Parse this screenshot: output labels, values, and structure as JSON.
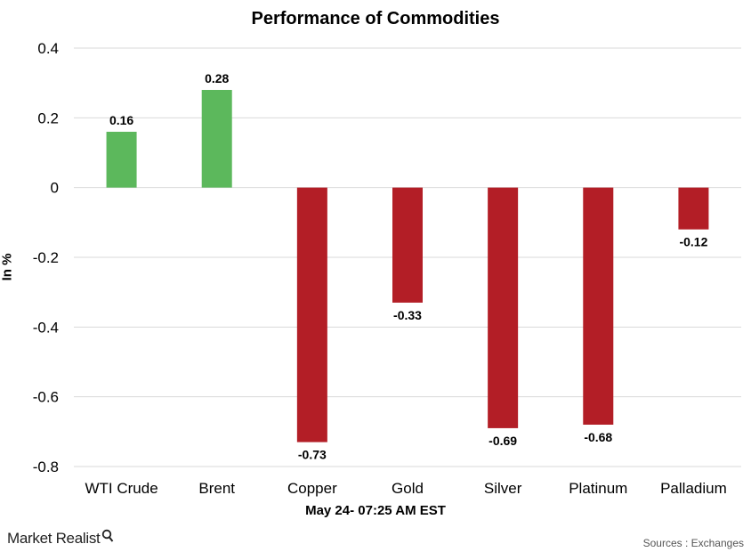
{
  "chart_data": {
    "type": "bar",
    "title": "Performance of Commodities",
    "xlabel": "May 24- 07:25 AM EST",
    "ylabel": "In %",
    "categories": [
      "WTI Crude",
      "Brent",
      "Copper",
      "Gold",
      "Silver",
      "Platinum",
      "Palladium"
    ],
    "values": [
      0.16,
      0.28,
      -0.73,
      -0.33,
      -0.69,
      -0.68,
      -0.12
    ],
    "value_labels": [
      "0.16",
      "0.28",
      "-0.73",
      "-0.33",
      "-0.69",
      "-0.68",
      "-0.12"
    ],
    "ylim": [
      -0.8,
      0.4
    ],
    "yticks": [
      0.4,
      0.2,
      0,
      -0.2,
      -0.4,
      -0.6,
      -0.8
    ],
    "ytick_labels": [
      "0.4",
      "0.2",
      "0",
      "-0.2",
      "-0.4",
      "-0.6",
      "-0.8"
    ],
    "grid": true,
    "legend": "none",
    "colors": {
      "positive": "#5cb85c",
      "negative": "#b31e26",
      "grid": "#d9d9d9"
    }
  },
  "footer": {
    "brand": "Market Realist",
    "brand_icon": "magnifier-icon",
    "source": "Sources : Exchanges"
  }
}
